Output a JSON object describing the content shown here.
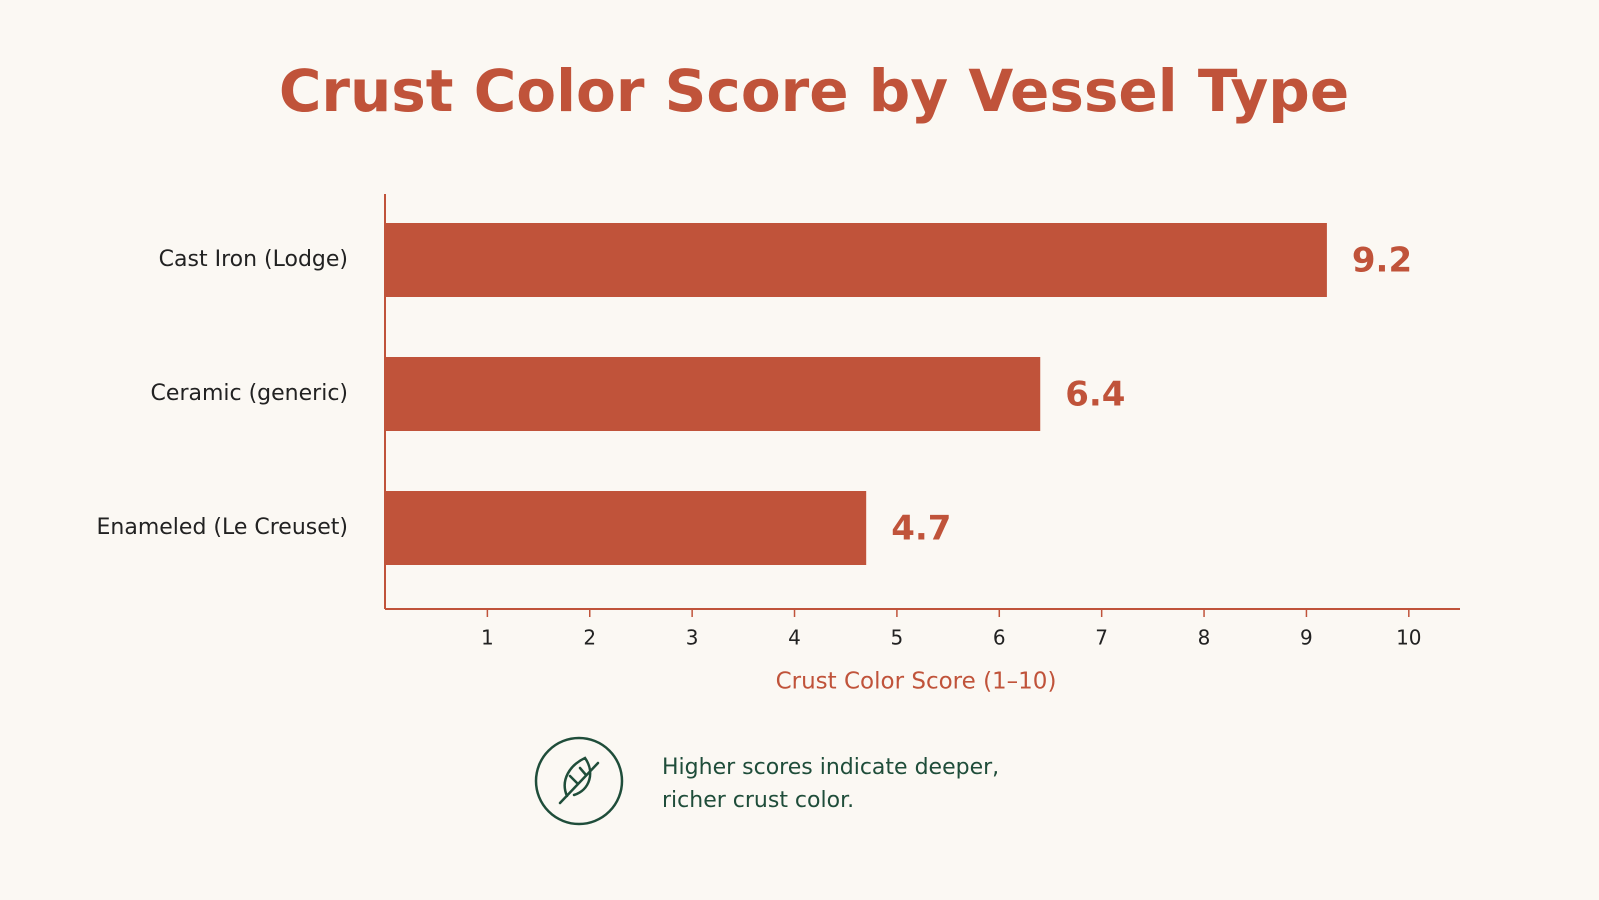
{
  "chart_data": {
    "type": "bar",
    "title": "Crust Color Score by Vessel Type",
    "categories": [
      "Cast Iron (Lodge)",
      "Ceramic (generic)",
      "Enameled (Le Creuset)"
    ],
    "values": [
      9.2,
      6.4,
      4.7
    ],
    "color": "#c0533a",
    "x_label": "Crust Color Score (1–10)",
    "xlim": [
      0,
      10.5
    ],
    "xticks": [
      1,
      2,
      3,
      4,
      5,
      6,
      7,
      8,
      9,
      10
    ],
    "note": [
      "Higher scores indicate deeper,",
      "richer crust color."
    ]
  }
}
